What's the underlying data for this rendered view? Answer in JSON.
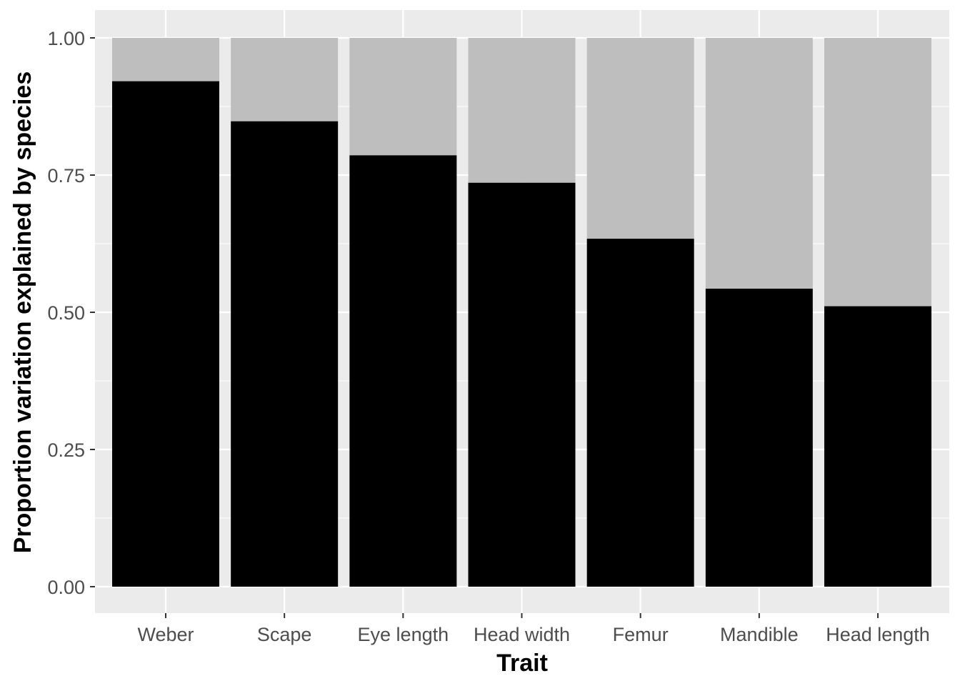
{
  "chart_data": {
    "type": "bar",
    "stacked": true,
    "title": "",
    "xlabel": "Trait",
    "ylabel": "Proportion variation explained by species",
    "ylim": [
      0,
      1
    ],
    "yticks": [
      "0.00",
      "0.25",
      "0.50",
      "0.75",
      "1.00"
    ],
    "categories": [
      "Weber",
      "Scape",
      "Eye length",
      "Head width",
      "Femur",
      "Mandible",
      "Head length"
    ],
    "series": [
      {
        "color": "#000000",
        "values": [
          0.921,
          0.848,
          0.786,
          0.736,
          0.634,
          0.543,
          0.511
        ]
      },
      {
        "color": "#bebebe",
        "values": [
          0.079,
          0.152,
          0.214,
          0.264,
          0.366,
          0.457,
          0.489
        ]
      }
    ],
    "grid": true,
    "legend": "none",
    "background": "#ebebeb",
    "gridline_color": "#ffffff"
  }
}
